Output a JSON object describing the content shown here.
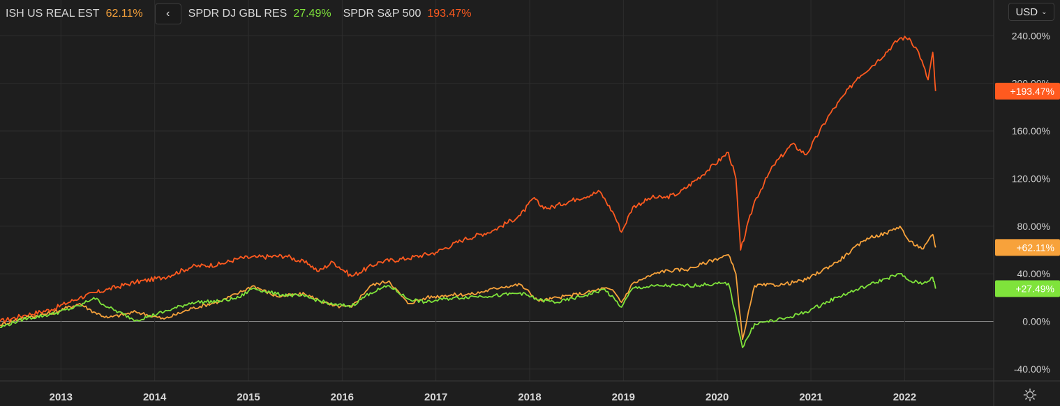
{
  "legend": {
    "items": [
      {
        "name": "ISH US REAL EST",
        "value": "62.11%",
        "color": "#f7a23b"
      },
      {
        "name": "SPDR DJ GBL RES",
        "value": "27.49%",
        "color": "#7fe33b"
      },
      {
        "name": "SPDR S&P 500",
        "value": "193.47%",
        "color": "#ff5a1f"
      }
    ],
    "nav_icon": "chevron-left-icon",
    "nav_label": "‹"
  },
  "currency": {
    "label": "USD",
    "icon": "chevron-down-icon",
    "chevron": "⌄"
  },
  "settings": {
    "icon": "gear-icon"
  },
  "chart_data": {
    "type": "line",
    "x_unit": "year",
    "x_ticks": [
      "2013",
      "2014",
      "2015",
      "2016",
      "2017",
      "2018",
      "2019",
      "2020",
      "2021",
      "2022"
    ],
    "y_ticks": [
      "-40.00%",
      "0.00%",
      "40.00%",
      "80.00%",
      "120.00%",
      "160.00%",
      "200.00%",
      "240.00%"
    ],
    "ylim": [
      -50,
      270
    ],
    "xlim": [
      2012.35,
      2022.95
    ],
    "grid": true,
    "end_labels": [
      "+193.47%",
      "+62.11%",
      "+27.49%"
    ],
    "series": [
      {
        "name": "SPDR S&P 500",
        "color": "#ff5a1f",
        "x": [
          2012.35,
          2012.6,
          2012.9,
          2013.2,
          2013.5,
          2013.8,
          2014.1,
          2014.4,
          2014.7,
          2014.9,
          2015.1,
          2015.4,
          2015.65,
          2015.75,
          2015.9,
          2016.1,
          2016.4,
          2016.7,
          2017.0,
          2017.3,
          2017.6,
          2017.9,
          2018.05,
          2018.1,
          2018.2,
          2018.5,
          2018.75,
          2018.9,
          2018.98,
          2019.1,
          2019.3,
          2019.45,
          2019.6,
          2019.9,
          2020.12,
          2020.2,
          2020.25,
          2020.4,
          2020.6,
          2020.8,
          2020.95,
          2021.2,
          2021.5,
          2021.7,
          2021.95,
          2022.05,
          2022.15,
          2022.25,
          2022.3,
          2022.33
        ],
        "y": [
          0,
          5,
          10,
          20,
          27,
          33,
          37,
          46,
          48,
          53,
          54,
          55,
          48,
          42,
          50,
          38,
          50,
          53,
          58,
          69,
          76,
          89,
          104,
          98,
          95,
          103,
          109,
          90,
          75,
          96,
          104,
          104,
          108,
          127,
          142,
          120,
          60,
          101,
          131,
          149,
          140,
          174,
          205,
          218,
          238,
          238,
          226,
          203,
          226,
          193.47
        ]
      },
      {
        "name": "ISH US REAL EST",
        "color": "#f7a23b",
        "x": [
          2012.35,
          2012.6,
          2012.9,
          2013.2,
          2013.35,
          2013.5,
          2013.8,
          2014.1,
          2014.4,
          2014.7,
          2014.9,
          2015.05,
          2015.3,
          2015.6,
          2015.9,
          2016.1,
          2016.3,
          2016.5,
          2016.7,
          2016.9,
          2017.1,
          2017.4,
          2017.7,
          2017.9,
          2018.1,
          2018.3,
          2018.6,
          2018.8,
          2018.9,
          2018.98,
          2019.1,
          2019.4,
          2019.7,
          2019.9,
          2020.12,
          2020.2,
          2020.27,
          2020.4,
          2020.7,
          2020.95,
          2021.3,
          2021.6,
          2021.8,
          2021.95,
          2022.05,
          2022.2,
          2022.3,
          2022.33
        ],
        "y": [
          -3,
          3,
          7,
          15,
          8,
          3,
          8,
          2,
          11,
          17,
          24,
          30,
          21,
          23,
          13,
          12,
          30,
          34,
          15,
          20,
          22,
          23,
          29,
          31,
          17,
          20,
          24,
          28,
          25,
          16,
          32,
          42,
          44,
          50,
          56,
          40,
          -15,
          30,
          31,
          35,
          51,
          70,
          74,
          80,
          67,
          61,
          73,
          62.11
        ]
      },
      {
        "name": "SPDR DJ GBL RES",
        "color": "#7fe33b",
        "x": [
          2012.35,
          2012.6,
          2012.9,
          2013.2,
          2013.35,
          2013.5,
          2013.8,
          2014.1,
          2014.4,
          2014.7,
          2014.9,
          2015.05,
          2015.3,
          2015.6,
          2015.9,
          2016.1,
          2016.3,
          2016.5,
          2016.7,
          2016.9,
          2017.1,
          2017.4,
          2017.7,
          2017.9,
          2018.1,
          2018.3,
          2018.6,
          2018.8,
          2018.98,
          2019.1,
          2019.4,
          2019.7,
          2019.9,
          2020.12,
          2020.2,
          2020.27,
          2020.4,
          2020.7,
          2020.95,
          2021.3,
          2021.6,
          2021.8,
          2021.95,
          2022.05,
          2022.2,
          2022.3,
          2022.33
        ],
        "y": [
          -5,
          2,
          6,
          13,
          20,
          12,
          1,
          8,
          16,
          17,
          20,
          28,
          23,
          21,
          14,
          13,
          24,
          30,
          19,
          16,
          19,
          21,
          22,
          24,
          18,
          16,
          22,
          27,
          12,
          28,
          30,
          30,
          31,
          32,
          5,
          -22,
          -2,
          2,
          8,
          21,
          30,
          36,
          40,
          34,
          32,
          37,
          27.49
        ]
      }
    ]
  }
}
